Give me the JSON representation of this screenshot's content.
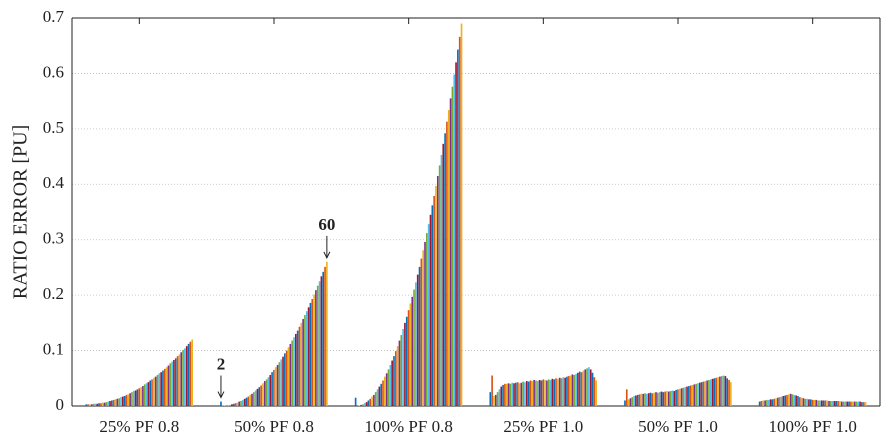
{
  "chart_data": {
    "type": "grouped-bar",
    "ylabel": "RATIO ERROR [PU]",
    "ylim": [
      0,
      0.7
    ],
    "yticks": [
      0,
      0.1,
      0.2,
      0.3,
      0.4,
      0.5,
      0.6,
      0.7
    ],
    "grid": true,
    "colors": [
      "#0072BD",
      "#D95319",
      "#EDB120",
      "#7E2F8E",
      "#77AC30",
      "#4DBEEE",
      "#A2142F"
    ],
    "annotations": [
      "2",
      "60"
    ],
    "categories": [
      "25% PF 0.8",
      "50% PF 0.8",
      "100% PF 0.8",
      "25% PF 1.0",
      "50% PF 1.0",
      "100% PF 1.0"
    ],
    "values": [
      [
        0.003,
        0.003,
        0.003,
        0.003,
        0.004,
        0.004,
        0.004,
        0.005,
        0.005,
        0.006,
        0.006,
        0.007,
        0.008,
        0.009,
        0.01,
        0.011,
        0.012,
        0.013,
        0.014,
        0.016,
        0.017,
        0.018,
        0.02,
        0.021,
        0.023,
        0.025,
        0.027,
        0.028,
        0.03,
        0.032,
        0.034,
        0.036,
        0.039,
        0.041,
        0.043,
        0.046,
        0.048,
        0.051,
        0.053,
        0.056,
        0.059,
        0.061,
        0.064,
        0.067,
        0.07,
        0.073,
        0.077,
        0.08,
        0.083,
        0.086,
        0.09,
        0.093,
        0.097,
        0.101,
        0.104,
        0.108,
        0.112,
        0.116,
        0.12
      ],
      [
        0.008,
        0.001,
        0.001,
        0.001,
        0.001,
        0.002,
        0.003,
        0.004,
        0.005,
        0.006,
        0.008,
        0.009,
        0.011,
        0.013,
        0.015,
        0.017,
        0.02,
        0.022,
        0.025,
        0.028,
        0.031,
        0.034,
        0.037,
        0.041,
        0.045,
        0.048,
        0.052,
        0.056,
        0.061,
        0.065,
        0.07,
        0.074,
        0.079,
        0.084,
        0.089,
        0.095,
        0.1,
        0.106,
        0.112,
        0.118,
        0.124,
        0.13,
        0.136,
        0.143,
        0.15,
        0.157,
        0.164,
        0.171,
        0.178,
        0.186,
        0.193,
        0.201,
        0.209,
        0.217,
        0.225,
        0.234,
        0.242,
        0.251,
        0.26
      ],
      [
        0.015,
        0,
        0.001,
        0.002,
        0.003,
        0.005,
        0.007,
        0.01,
        0.013,
        0.017,
        0.02,
        0.025,
        0.03,
        0.035,
        0.04,
        0.046,
        0.053,
        0.059,
        0.066,
        0.074,
        0.082,
        0.09,
        0.099,
        0.108,
        0.118,
        0.128,
        0.139,
        0.15,
        0.161,
        0.173,
        0.185,
        0.197,
        0.21,
        0.223,
        0.237,
        0.251,
        0.266,
        0.281,
        0.296,
        0.312,
        0.328,
        0.345,
        0.362,
        0.379,
        0.397,
        0.415,
        0.434,
        0.453,
        0.473,
        0.492,
        0.513,
        0.534,
        0.555,
        0.576,
        0.598,
        0.62,
        0.643,
        0.666,
        0.69
      ],
      [
        0.025,
        0.055,
        0.018,
        0.02,
        0.025,
        0.03,
        0.035,
        0.038,
        0.04,
        0.04,
        0.041,
        0.04,
        0.042,
        0.041,
        0.042,
        0.043,
        0.041,
        0.042,
        0.044,
        0.043,
        0.045,
        0.044,
        0.046,
        0.045,
        0.047,
        0.046,
        0.045,
        0.047,
        0.046,
        0.048,
        0.047,
        0.046,
        0.048,
        0.047,
        0.049,
        0.048,
        0.05,
        0.049,
        0.051,
        0.05,
        0.052,
        0.051,
        0.053,
        0.054,
        0.055,
        0.057,
        0.056,
        0.058,
        0.06,
        0.062,
        0.061,
        0.064,
        0.066,
        0.068,
        0.07,
        0.066,
        0.06,
        0.052,
        0.046
      ],
      [
        0.01,
        0.03,
        0.012,
        0.014,
        0.016,
        0.018,
        0.019,
        0.02,
        0.021,
        0.022,
        0.022,
        0.023,
        0.022,
        0.023,
        0.024,
        0.023,
        0.024,
        0.025,
        0.024,
        0.025,
        0.026,
        0.025,
        0.026,
        0.027,
        0.026,
        0.027,
        0.028,
        0.027,
        0.029,
        0.03,
        0.031,
        0.032,
        0.033,
        0.034,
        0.035,
        0.036,
        0.037,
        0.038,
        0.039,
        0.04,
        0.041,
        0.042,
        0.043,
        0.044,
        0.045,
        0.046,
        0.047,
        0.048,
        0.049,
        0.05,
        0.051,
        0.052,
        0.053,
        0.054,
        0.055,
        0.054,
        0.05,
        0.047,
        0.043
      ],
      [
        0.008,
        0.009,
        0.01,
        0.01,
        0.011,
        0.011,
        0.012,
        0.012,
        0.013,
        0.014,
        0.015,
        0.016,
        0.017,
        0.018,
        0.019,
        0.02,
        0.021,
        0.022,
        0.021,
        0.02,
        0.019,
        0.018,
        0.016,
        0.015,
        0.014,
        0.013,
        0.013,
        0.012,
        0.012,
        0.011,
        0.011,
        0.011,
        0.01,
        0.01,
        0.01,
        0.01,
        0.01,
        0.01,
        0.009,
        0.009,
        0.009,
        0.009,
        0.009,
        0.009,
        0.009,
        0.008,
        0.008,
        0.008,
        0.008,
        0.008,
        0.008,
        0.008,
        0.008,
        0.008,
        0.008,
        0.008,
        0.007,
        0.007,
        0.007
      ]
    ]
  }
}
